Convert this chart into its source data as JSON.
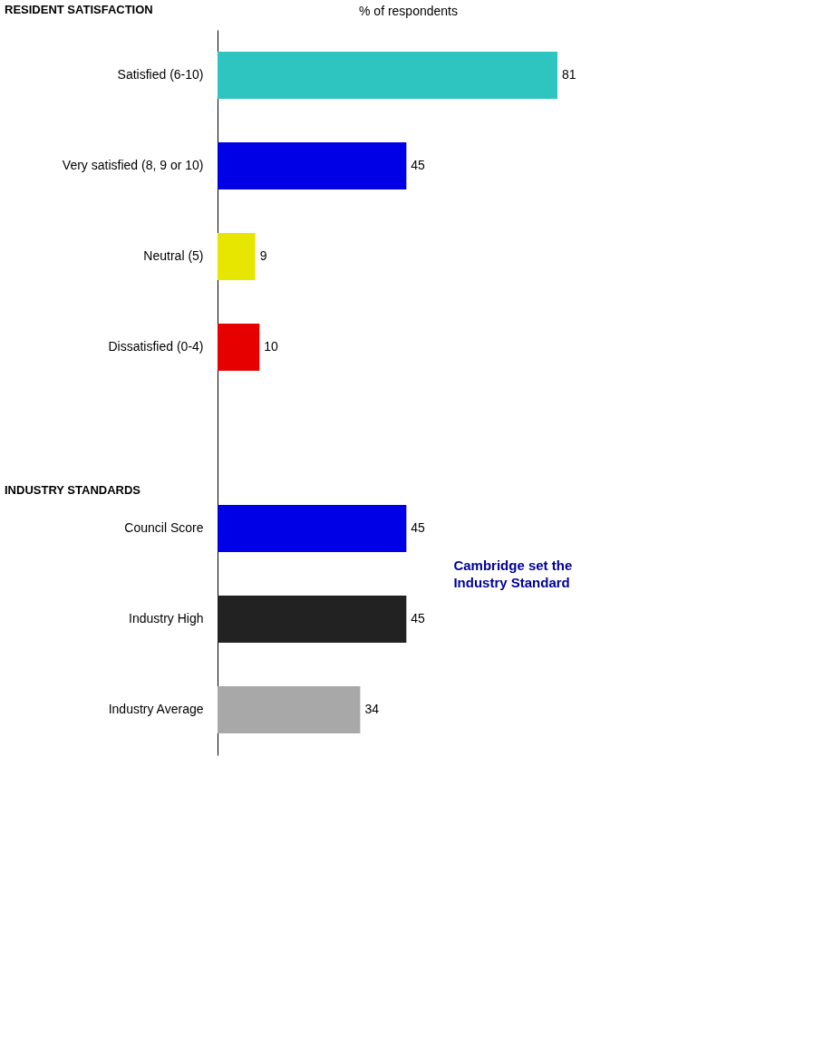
{
  "chart_data": {
    "type": "bar",
    "orientation": "horizontal",
    "xlabel": "% of respondents",
    "categories": [
      "Satisfied (6-10)",
      "Very satisfied (8, 9 or 10)",
      "Neutral (5)",
      "Dissatisfied (0-4)",
      null,
      "Council Score",
      "Industry High",
      "Industry Average"
    ],
    "values": [
      81,
      45,
      9,
      10,
      null,
      45,
      45,
      34
    ],
    "colors": [
      "#2ec4c0",
      "#0000e6",
      "#e6e600",
      "#e60000",
      null,
      "#0000e6",
      "#222222",
      "#a8a8a8"
    ],
    "data_labels": true,
    "grid": false,
    "annotations": [
      "RESIDENT SATISFACTION",
      "INDUSTRY STANDARDS",
      "Cambridge set the Industry Standard"
    ]
  }
}
